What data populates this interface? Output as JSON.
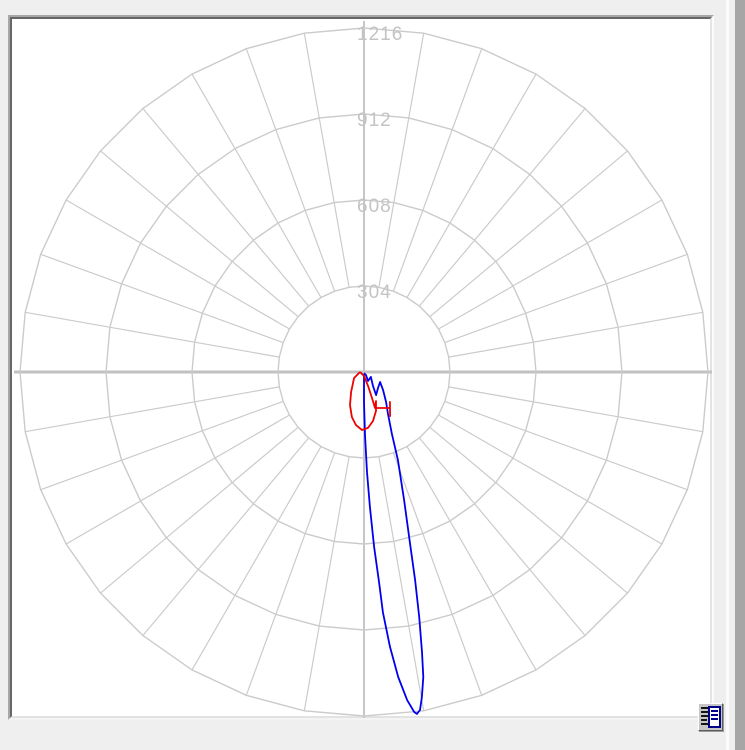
{
  "window": {
    "background": "#efefef",
    "edge_band_color": "#a6a6a6",
    "panel_background": "#ffffff"
  },
  "chart_data": {
    "type": "line",
    "subtype": "polar-photometric-candela-distribution",
    "title": "",
    "grid": true,
    "angular_grid_step_deg": 10,
    "angle_convention": "degrees measured from nadir (straight down), positive toward the right",
    "radial_ticks": [
      304,
      608,
      912,
      1216
    ],
    "radial_tick_labels": [
      "304",
      "608",
      "912",
      "1216"
    ],
    "radial_max": 1216,
    "colors": {
      "grid": "#cbcbcb",
      "axis_horizontal": "#c1c1c1",
      "axis_vertical": "#c6c6c6",
      "tick_label": "#c4c4c4"
    },
    "series": [
      {
        "name": "vertical-plane-curve",
        "legend": "",
        "color": "#0000ee",
        "points": [
          [
            0,
            7
          ],
          [
            0,
            106
          ],
          [
            0.9,
            223
          ],
          [
            1.7,
            354
          ],
          [
            2.5,
            477
          ],
          [
            3.3,
            619
          ],
          [
            4.1,
            746
          ],
          [
            4.5,
            852
          ],
          [
            5.4,
            976
          ],
          [
            6.4,
            1085
          ],
          [
            7.5,
            1170
          ],
          [
            8.4,
            1215
          ],
          [
            8.8,
            1223
          ],
          [
            9.4,
            1211
          ],
          [
            10.1,
            1167
          ],
          [
            11,
            1098
          ],
          [
            11.7,
            1011
          ],
          [
            12.7,
            887
          ],
          [
            13.8,
            757
          ],
          [
            15.1,
            622
          ],
          [
            17.4,
            474
          ],
          [
            21.1,
            333
          ],
          [
            24.3,
            240
          ],
          [
            29.7,
            171
          ],
          [
            36.3,
            132
          ],
          [
            46.6,
            93
          ],
          [
            58,
            67
          ],
          [
            41.2,
            75
          ],
          [
            27.6,
            92
          ],
          [
            32.7,
            59
          ],
          [
            54.5,
            30
          ],
          [
            24,
            35
          ],
          [
            33.7,
            13
          ],
          [
            0,
            4
          ]
        ]
      },
      {
        "name": "horizontal-plane-curve",
        "legend": "",
        "color": "#ee0000",
        "points": [
          [
            -90,
            14
          ],
          [
            -59,
            41
          ],
          [
            -33,
            84
          ],
          [
            -23,
            127
          ],
          [
            -15,
            165
          ],
          [
            -8.6,
            190
          ],
          [
            -2,
            205
          ],
          [
            4.1,
            198
          ],
          [
            10.4,
            176
          ],
          [
            17.1,
            144
          ],
          [
            22.5,
            111
          ],
          [
            17,
            133
          ],
          [
            35.8,
            157
          ],
          [
            40.9,
            140
          ],
          [
            30.6,
            181
          ],
          [
            35.8,
            157
          ],
          [
            17,
            133
          ],
          [
            17.1,
            96
          ],
          [
            16,
            52
          ],
          [
            0,
            14
          ],
          [
            -90,
            14
          ]
        ]
      }
    ]
  },
  "controls": {
    "doc_view_button": {
      "icon": "document-text-icon",
      "label": ""
    }
  }
}
